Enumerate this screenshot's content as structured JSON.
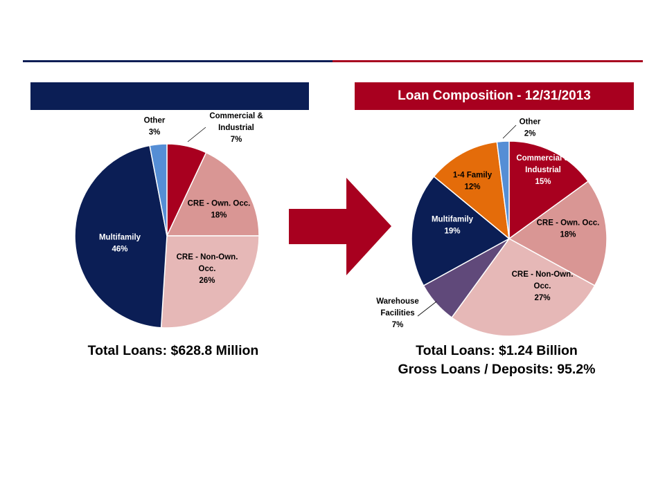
{
  "colors": {
    "navy": "#0B1E55",
    "crimson": "#A8001F",
    "commercial": "#A8001F",
    "cre_own": "#D99694",
    "cre_non_own": "#E6B8B7",
    "multifamily": "#0B1E55",
    "other": "#558ED5",
    "warehouse": "#60497A",
    "family14": "#E46C0A"
  },
  "header": {
    "left_title": "",
    "right_title": "Loan Composition - 12/31/2013"
  },
  "chart_data": [
    {
      "type": "pie",
      "title": "",
      "slices": [
        {
          "name": "Commercial & Industrial",
          "value": 7,
          "label_lines": [
            "Commercial &",
            "Industrial",
            "7%"
          ],
          "color_key": "commercial"
        },
        {
          "name": "CRE - Own. Occ.",
          "value": 18,
          "label_lines": [
            "CRE - Own. Occ.",
            "18%"
          ],
          "color_key": "cre_own"
        },
        {
          "name": "CRE - Non-Own. Occ.",
          "value": 26,
          "label_lines": [
            "CRE - Non-Own.",
            "Occ.",
            "26%"
          ],
          "color_key": "cre_non_own"
        },
        {
          "name": "Multifamily",
          "value": 46,
          "label_lines": [
            "Multifamily",
            "46%"
          ],
          "color_key": "multifamily"
        },
        {
          "name": "Other",
          "value": 3,
          "label_lines": [
            "Other",
            "3%"
          ],
          "color_key": "other"
        }
      ],
      "footer": [
        "Total Loans: $628.8 Million"
      ]
    },
    {
      "type": "pie",
      "title": "Loan Composition - 12/31/2013",
      "slices": [
        {
          "name": "Commercial & Industrial",
          "value": 15,
          "label_lines": [
            "Commercial &",
            "Industrial",
            "15%"
          ],
          "color_key": "commercial"
        },
        {
          "name": "CRE - Own. Occ.",
          "value": 18,
          "label_lines": [
            "CRE - Own. Occ.",
            "18%"
          ],
          "color_key": "cre_own"
        },
        {
          "name": "CRE - Non-Own. Occ.",
          "value": 27,
          "label_lines": [
            "CRE - Non-Own.",
            "Occ.",
            "27%"
          ],
          "color_key": "cre_non_own"
        },
        {
          "name": "Warehouse Facilities",
          "value": 7,
          "label_lines": [
            "Warehouse",
            "Facilities",
            "7%"
          ],
          "color_key": "warehouse"
        },
        {
          "name": "Multifamily",
          "value": 19,
          "label_lines": [
            "Multifamily",
            "19%"
          ],
          "color_key": "multifamily"
        },
        {
          "name": "1-4 Family",
          "value": 12,
          "label_lines": [
            "1-4 Family",
            "12%"
          ],
          "color_key": "family14"
        },
        {
          "name": "Other",
          "value": 2,
          "label_lines": [
            "Other",
            "2%"
          ],
          "color_key": "other"
        }
      ],
      "footer": [
        "Total Loans: $1.24 Billion",
        "Gross Loans / Deposits: 95.2%"
      ]
    }
  ]
}
